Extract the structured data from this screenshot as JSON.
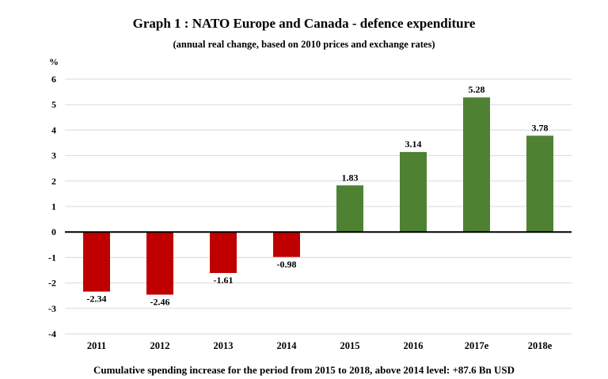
{
  "chart_data": {
    "type": "bar",
    "title": "Graph 1 : NATO Europe and Canada - defence expenditure",
    "subtitle": "(annual real change, based on 2010 prices and exchange rates)",
    "ylabel": "%",
    "xlabel": "",
    "ylim": [
      -4,
      6
    ],
    "yticks": [
      6,
      5,
      4,
      3,
      2,
      1,
      0,
      -1,
      -2,
      -3,
      -4
    ],
    "categories": [
      "2011",
      "2012",
      "2013",
      "2014",
      "2015",
      "2016",
      "2017e",
      "2018e"
    ],
    "values": [
      -2.34,
      -2.46,
      -1.61,
      -0.98,
      1.83,
      3.14,
      5.28,
      3.78
    ],
    "data_labels": [
      "-2.34",
      "-2.46",
      "-1.61",
      "-0.98",
      "1.83",
      "3.14",
      "5.28",
      "3.78"
    ],
    "colors": {
      "negative": "#c00000",
      "positive": "#4e8232",
      "grid": "#d9d9d9",
      "zero_line": "#000000"
    },
    "grid": true,
    "legend": "none",
    "footnote": "Cumulative spending increase for the period from 2015 to 2018, above 2014 level: +87.6 Bn USD"
  }
}
